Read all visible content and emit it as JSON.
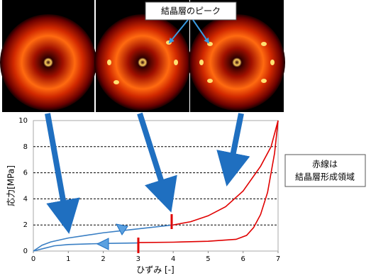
{
  "chart_data": {
    "type": "line",
    "xlabel": "ひずみ [-]",
    "ylabel": "応力[MPa]",
    "annotations": [
      "結晶層のピーク",
      "赤線は",
      "結晶層形成領域"
    ],
    "xlim": [
      0,
      7
    ],
    "xticks": [
      0,
      1,
      2,
      3,
      4,
      5,
      6,
      7
    ],
    "ylim": [
      0,
      10
    ],
    "yticks": [
      0,
      2,
      4,
      6,
      8,
      10
    ],
    "grid": true,
    "series": [
      {
        "color": "#3a7fc4",
        "x": [
          0,
          0.25,
          0.5,
          1,
          1.5,
          2,
          2.5,
          3,
          3.5,
          4
        ],
        "values": [
          0,
          0.45,
          0.7,
          1.0,
          1.2,
          1.4,
          1.55,
          1.7,
          1.85,
          2.0
        ]
      },
      {
        "color": "#e00000",
        "x": [
          4,
          4.5,
          5,
          5.5,
          6,
          6.5,
          6.8,
          7
        ],
        "values": [
          2,
          2.25,
          2.7,
          3.4,
          4.6,
          6.5,
          8,
          10
        ]
      },
      {
        "color": "#e00000",
        "x": [
          7,
          6.9,
          6.7,
          6.5,
          6.3,
          6.1,
          5.8,
          5,
          4,
          3
        ],
        "values": [
          10,
          7.5,
          4.5,
          2.8,
          1.8,
          1.2,
          0.9,
          0.75,
          0.68,
          0.65
        ]
      },
      {
        "color": "#3a7fc4",
        "x": [
          3,
          2,
          1,
          0.6,
          0.3,
          0
        ],
        "values": [
          0.62,
          0.58,
          0.5,
          0.4,
          0.2,
          0
        ]
      }
    ]
  }
}
